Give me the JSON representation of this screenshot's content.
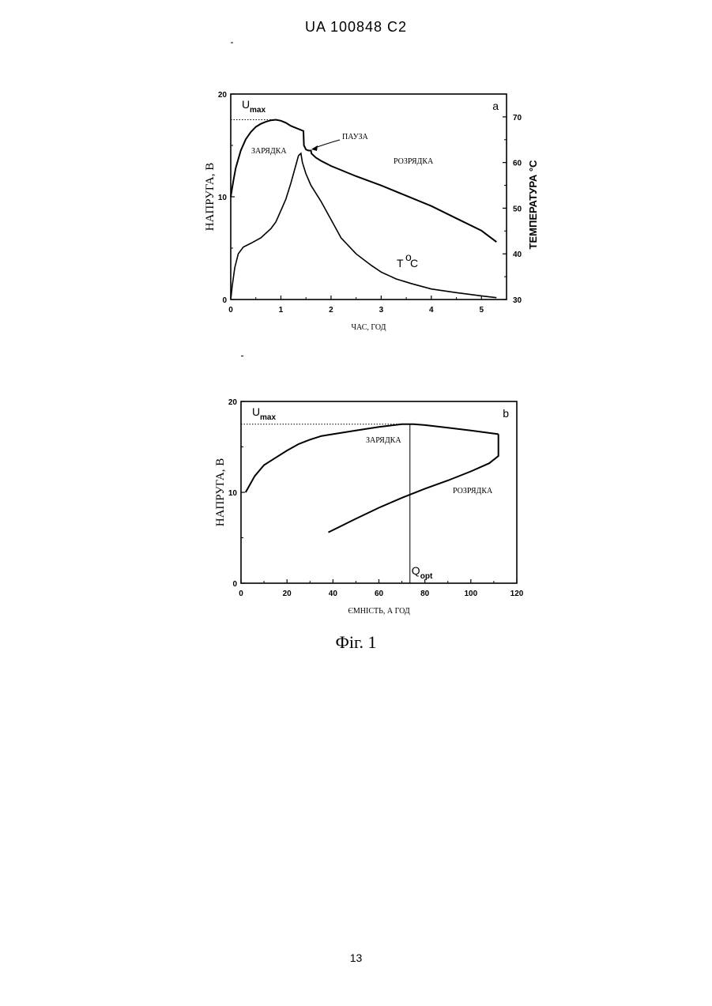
{
  "header": "UA   100848   C2",
  "caption": "Фіг. 1",
  "page_number": "13",
  "chart_data": [
    {
      "type": "line",
      "panel_letter": "a",
      "xlabel": "ЧАС, ГОД",
      "ylabel": "НАПРУГА, В",
      "y2label": "ТЕМПЕРАТУРА °С",
      "xlim": [
        0,
        5.5
      ],
      "ylim": [
        0,
        20
      ],
      "y2lim": [
        30,
        75
      ],
      "xticks": [
        "0",
        "1",
        "2",
        "3",
        "4",
        "5"
      ],
      "yticks": [
        "0",
        "10",
        "20"
      ],
      "y2ticks": [
        "30",
        "40",
        "50",
        "60",
        "70"
      ],
      "umax_label": "U",
      "umax_sub": "max",
      "umax_value": 17.5,
      "annotations": {
        "charge": "ЗАРЯДКА",
        "pause": "ПАУЗА",
        "discharge": "РОЗРЯДКА",
        "temp_T": "T",
        "temp_deg": "o",
        "temp_C": "C"
      },
      "series": [
        {
          "axis": "left",
          "x": [
            0,
            0.05,
            0.1,
            0.2,
            0.3,
            0.4,
            0.5,
            0.6,
            0.7,
            0.8,
            0.9,
            1.0,
            1.1,
            1.2,
            1.3,
            1.45,
            1.46,
            1.5,
            1.55,
            1.6,
            1.61,
            1.7,
            1.8,
            2.0,
            2.5,
            3.0,
            3.5,
            4.0,
            4.5,
            5.0,
            5.3
          ],
          "y": [
            10.0,
            11.5,
            12.8,
            14.5,
            15.6,
            16.3,
            16.8,
            17.1,
            17.3,
            17.45,
            17.5,
            17.4,
            17.2,
            16.9,
            16.7,
            16.4,
            15.0,
            14.6,
            14.5,
            14.5,
            14.2,
            13.8,
            13.5,
            13.0,
            12.0,
            11.1,
            10.1,
            9.1,
            7.9,
            6.7,
            5.6
          ]
        },
        {
          "axis": "right",
          "x": [
            0,
            0.03,
            0.08,
            0.15,
            0.25,
            0.4,
            0.6,
            0.8,
            0.9,
            1.0,
            1.1,
            1.2,
            1.3,
            1.35,
            1.4,
            1.43,
            1.5,
            1.6,
            1.8,
            2.0,
            2.2,
            2.5,
            2.8,
            3.0,
            3.3,
            3.6,
            4.0,
            4.5,
            5.0,
            5.3
          ],
          "y": [
            30.0,
            33.0,
            37.0,
            40.0,
            41.5,
            42.3,
            43.5,
            45.5,
            47.0,
            49.5,
            52.0,
            55.5,
            59.5,
            61.5,
            62.0,
            60.0,
            57.5,
            55.0,
            51.5,
            47.5,
            43.5,
            40.0,
            37.5,
            36.0,
            34.5,
            33.5,
            32.3,
            31.5,
            30.8,
            30.4
          ]
        }
      ]
    },
    {
      "type": "line",
      "panel_letter": "b",
      "xlabel": "ЄМНІСТЬ, А ГОД",
      "ylabel": "НАПРУГА, В",
      "xlim": [
        0,
        120
      ],
      "ylim": [
        0,
        20
      ],
      "xticks": [
        "0",
        "20",
        "40",
        "60",
        "80",
        "100",
        "120"
      ],
      "yticks": [
        "0",
        "10",
        "20"
      ],
      "umax_label": "U",
      "umax_sub": "max",
      "umax_value": 17.5,
      "qopt_label": "Q",
      "qopt_sub": "opt",
      "qopt_x": 73.5,
      "annotations": {
        "charge": "ЗАРЯДКА",
        "discharge": "РОЗРЯДКА"
      },
      "series": [
        {
          "x": [
            2,
            6,
            10,
            15,
            20,
            25,
            30,
            35,
            40,
            50,
            60,
            70,
            75,
            80,
            90,
            100,
            112
          ],
          "y": [
            10.0,
            11.8,
            13.0,
            13.8,
            14.6,
            15.3,
            15.8,
            16.2,
            16.4,
            16.8,
            17.2,
            17.5,
            17.5,
            17.4,
            17.1,
            16.8,
            16.4
          ]
        },
        {
          "x": [
            112,
            112,
            108,
            100,
            90,
            80,
            70,
            60,
            50,
            38
          ],
          "y": [
            16.4,
            14.0,
            13.2,
            12.3,
            11.3,
            10.4,
            9.4,
            8.3,
            7.1,
            5.6
          ]
        }
      ]
    }
  ]
}
